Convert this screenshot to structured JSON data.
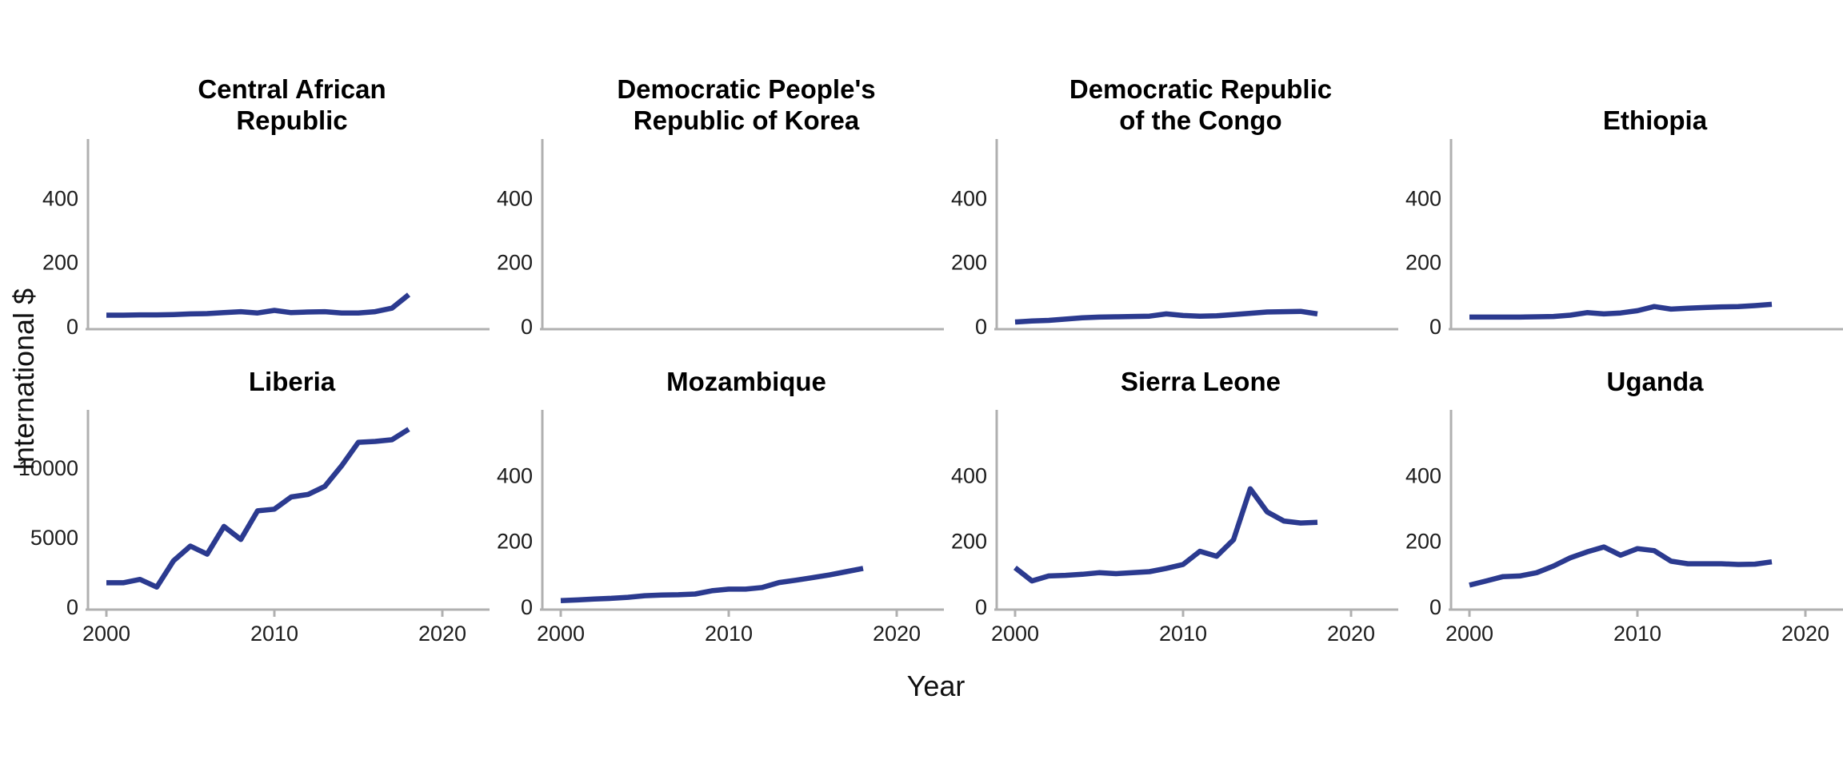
{
  "figure": {
    "background": "#ffffff",
    "text_color": "#1c1c1c",
    "title_color": "#000000"
  },
  "chart_data": {
    "type": "line",
    "title": "",
    "xlabel": "Year",
    "ylabel": "International $",
    "line_color": "#2b3a8f",
    "axis_color": "#b0b0b0",
    "grid": "off",
    "legend": "none",
    "x_years": [
      2000,
      2001,
      2002,
      2003,
      2004,
      2005,
      2006,
      2007,
      2008,
      2009,
      2010,
      2011,
      2012,
      2013,
      2014,
      2015,
      2016,
      2017,
      2018
    ],
    "xticks": [
      2000,
      2010,
      2020
    ],
    "xlim": [
      1999,
      2021.8
    ],
    "panels": [
      {
        "title": "Central African\nRepublic",
        "row": 0,
        "yticks": [
          0,
          200,
          400
        ],
        "ylim": [
          0,
          580
        ],
        "values": [
          36,
          36,
          37,
          37,
          38,
          40,
          41,
          44,
          47,
          43,
          51,
          44,
          46,
          47,
          43,
          43,
          47,
          58,
          100
        ]
      },
      {
        "title": "Democratic People's\nRepublic of Korea",
        "row": 0,
        "yticks": [
          0,
          200,
          400
        ],
        "ylim": [
          0,
          580
        ],
        "values": []
      },
      {
        "title": "Democratic Republic\nof the Congo",
        "row": 0,
        "yticks": [
          0,
          200,
          400
        ],
        "ylim": [
          0,
          580
        ],
        "values": [
          15,
          18,
          20,
          24,
          28,
          30,
          31,
          32,
          33,
          40,
          35,
          33,
          34,
          38,
          42,
          46,
          47,
          48,
          40
        ]
      },
      {
        "title": "Ethiopia",
        "row": 0,
        "yticks": [
          0,
          200,
          400
        ],
        "ylim": [
          0,
          580
        ],
        "values": [
          30,
          30,
          30,
          30,
          31,
          32,
          36,
          44,
          40,
          43,
          50,
          63,
          55,
          58,
          60,
          62,
          63,
          66,
          70
        ]
      },
      {
        "title": "Liberia",
        "row": 1,
        "yticks": [
          0,
          5000,
          10000
        ],
        "ylim": [
          0,
          14100
        ],
        "values": [
          1760,
          1760,
          2000,
          1450,
          3350,
          4400,
          3820,
          5820,
          4880,
          6940,
          7060,
          7940,
          8120,
          8700,
          10180,
          11880,
          11940,
          12060,
          12820
        ]
      },
      {
        "title": "Mozambique",
        "row": 1,
        "yticks": [
          0,
          200,
          400
        ],
        "ylim": [
          0,
          595
        ],
        "values": [
          20,
          22,
          25,
          27,
          30,
          35,
          37,
          38,
          40,
          50,
          55,
          55,
          60,
          75,
          82,
          90,
          98,
          108,
          118
        ]
      },
      {
        "title": "Sierra Leone",
        "row": 1,
        "yticks": [
          0,
          200,
          400
        ],
        "ylim": [
          0,
          595
        ],
        "values": [
          120,
          80,
          95,
          97,
          100,
          105,
          102,
          105,
          108,
          118,
          130,
          170,
          155,
          205,
          360,
          290,
          262,
          256,
          258
        ]
      },
      {
        "title": "Uganda",
        "row": 1,
        "yticks": [
          0,
          200,
          400
        ],
        "ylim": [
          0,
          595
        ],
        "values": [
          67,
          80,
          93,
          95,
          105,
          125,
          150,
          168,
          183,
          158,
          178,
          172,
          140,
          132,
          132,
          132,
          130,
          131,
          138
        ]
      }
    ]
  }
}
